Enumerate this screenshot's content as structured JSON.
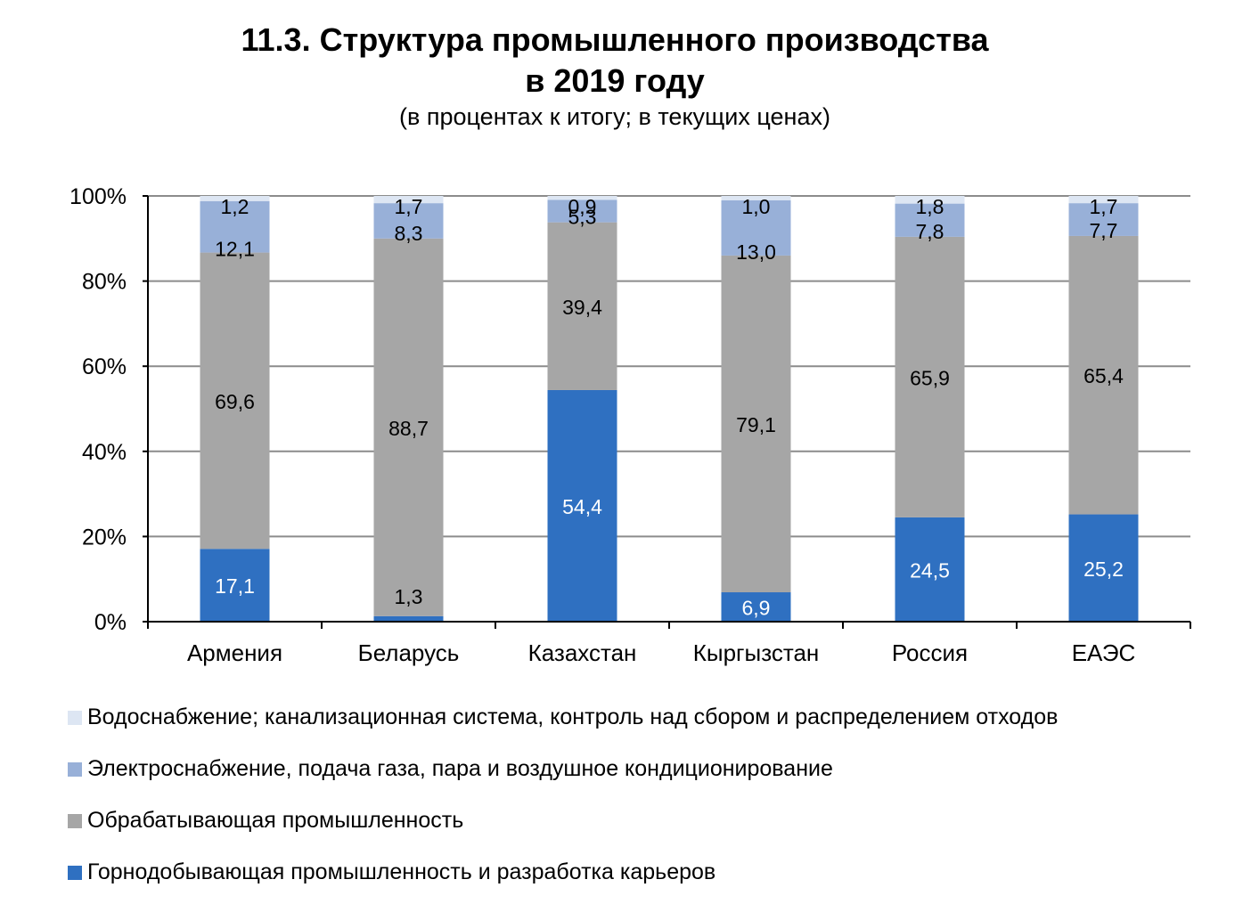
{
  "title_line1": "11.3. Структура промышленного производства",
  "title_line2": "в 2019 году",
  "subtitle": "(в процентах к итогу; в текущих ценах)",
  "colors": {
    "water": "#dde6f3",
    "electricity": "#98b0d8",
    "manufacturing": "#a6a6a6",
    "mining": "#2f70c1",
    "gridline": "#8c8c8c",
    "axis": "#000000"
  },
  "chart_data": {
    "type": "bar",
    "stacked": true,
    "categories": [
      "Армения",
      "Беларусь",
      "Казахстан",
      "Кыргызстан",
      "Россия",
      "ЕАЭС"
    ],
    "y_tick_labels": [
      "0%",
      "20%",
      "40%",
      "60%",
      "80%",
      "100%"
    ],
    "ylim": [
      0,
      100
    ],
    "grid": true,
    "legend_position": "bottom",
    "series": [
      {
        "name": "Горнодобывающая промышленность и разработка карьеров",
        "color_key": "mining",
        "values": [
          17.1,
          1.3,
          54.4,
          6.9,
          24.5,
          25.2
        ],
        "labels": [
          "17,1",
          "1,3",
          "54,4",
          "6,9",
          "24,5",
          "25,2"
        ]
      },
      {
        "name": "Обрабатывающая промышленность",
        "color_key": "manufacturing",
        "values": [
          69.6,
          88.7,
          39.4,
          79.1,
          65.9,
          65.4
        ],
        "labels": [
          "69,6",
          "88,7",
          "39,4",
          "79,1",
          "65,9",
          "65,4"
        ]
      },
      {
        "name": "Электроснабжение, подача газа, пара и воздушное кондиционирование",
        "color_key": "electricity",
        "values": [
          12.1,
          8.3,
          5.3,
          13.0,
          7.8,
          7.7
        ],
        "labels": [
          "12,1",
          "8,3",
          "5,3",
          "13,0",
          "7,8",
          "7,7"
        ]
      },
      {
        "name": "Водоснабжение; канализационная система, контроль над сбором и распределением отходов",
        "color_key": "water",
        "values": [
          1.2,
          1.7,
          0.9,
          1.0,
          1.8,
          1.7
        ],
        "labels": [
          "1,2",
          "1,7",
          "0,9",
          "1,0",
          "1,8",
          "1,7"
        ]
      }
    ]
  },
  "legend": [
    {
      "label": "Водоснабжение; канализационная система, контроль над сбором и распределением отходов",
      "color_key": "water"
    },
    {
      "label": "Электроснабжение, подача газа, пара и воздушное кондиционирование",
      "color_key": "electricity"
    },
    {
      "label": "Обрабатывающая промышленность",
      "color_key": "manufacturing"
    },
    {
      "label": "Горнодобывающая промышленность и разработка карьеров",
      "color_key": "mining"
    }
  ]
}
